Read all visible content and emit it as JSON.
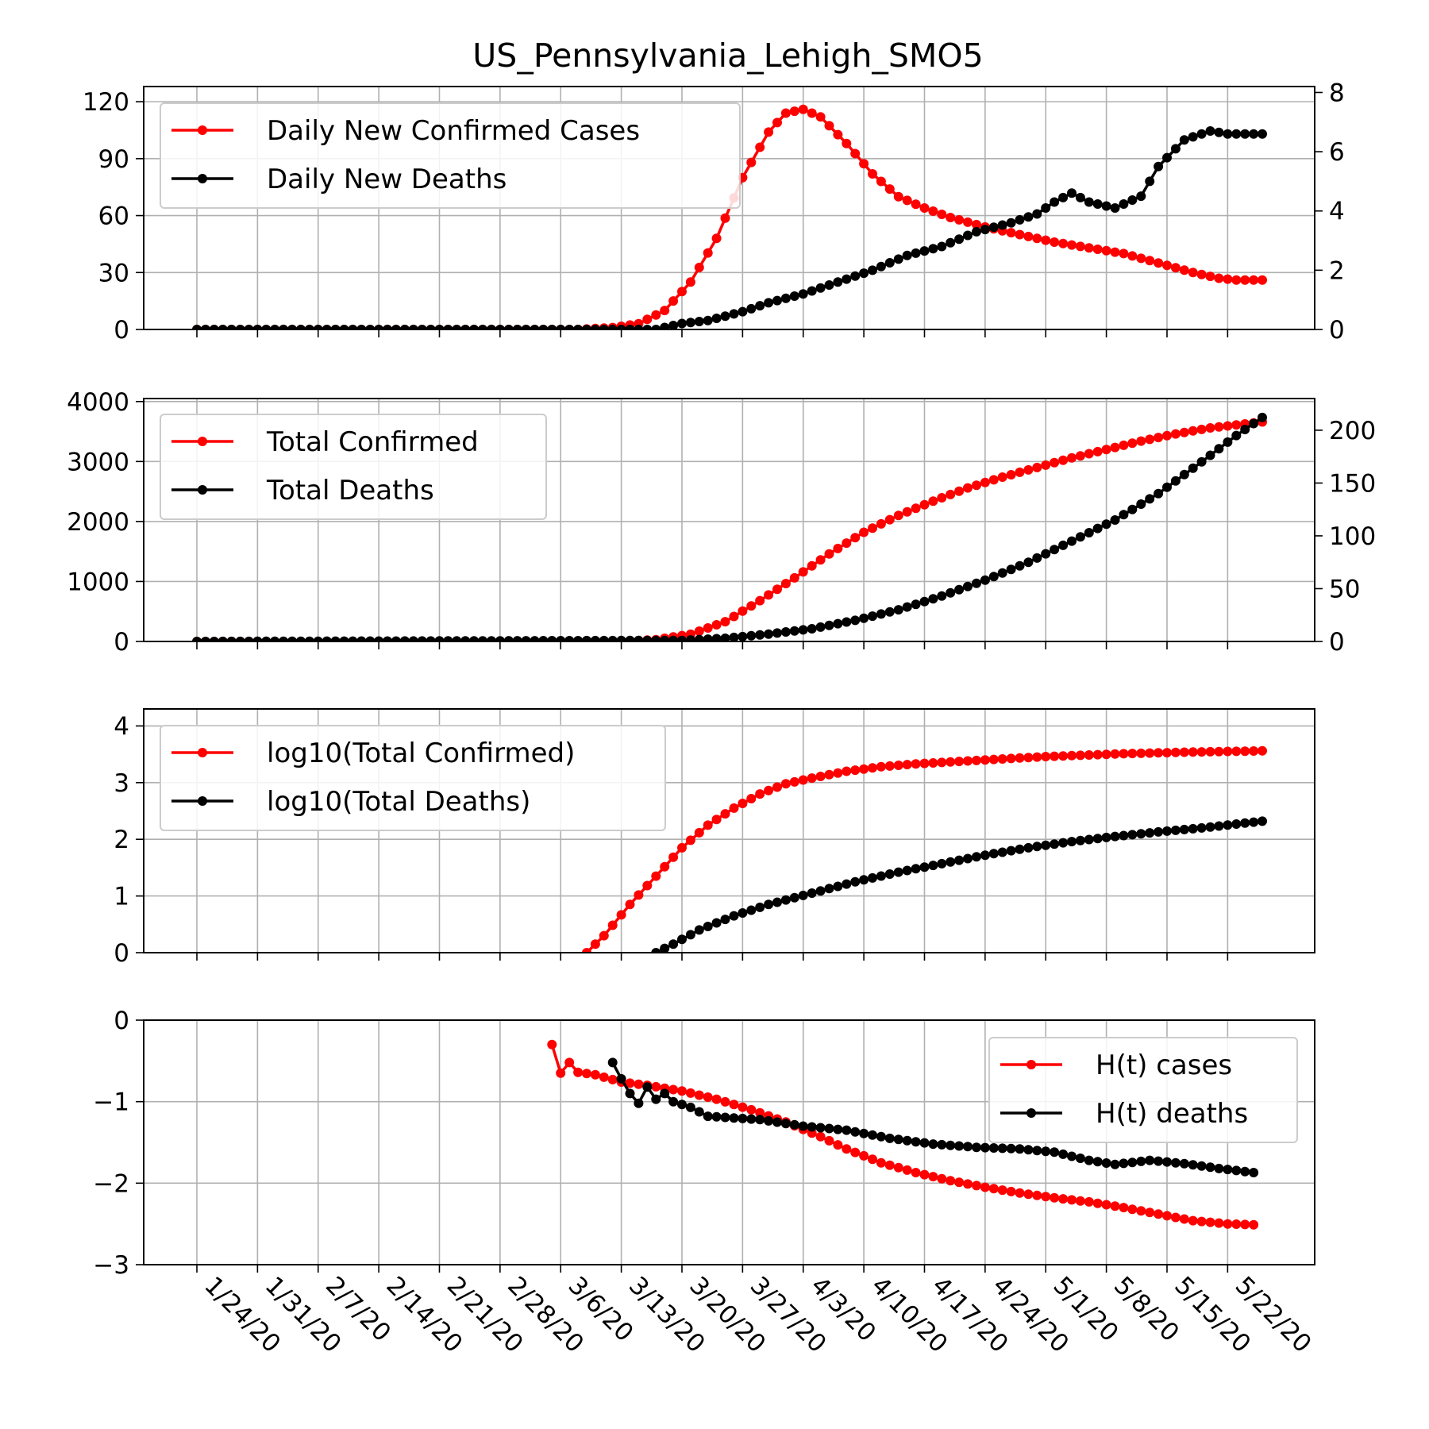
{
  "title": "US_Pennsylvania_Lehigh_SMO5",
  "colors": {
    "cases": "#ff0000",
    "deaths": "#000000",
    "grid": "#b0b0b0"
  },
  "date_ticks": [
    "1/24/20",
    "1/31/20",
    "2/7/20",
    "2/14/20",
    "2/21/20",
    "2/28/20",
    "3/6/20",
    "3/13/20",
    "3/20/20",
    "3/27/20",
    "4/3/20",
    "4/10/20",
    "4/17/20",
    "4/24/20",
    "5/1/20",
    "5/8/20",
    "5/15/20",
    "5/22/20"
  ],
  "chart_data": [
    {
      "type": "line",
      "x_range_dates": [
        "1/24/20",
        "5/26/20"
      ],
      "legend_position": "upper-left",
      "grid": true,
      "ylim_left": [
        0,
        128
      ],
      "yticks_left": [
        "0",
        "30",
        "60",
        "90",
        "120"
      ],
      "ylim_right": [
        0,
        8.2
      ],
      "yticks_right": [
        "0",
        "2",
        "4",
        "6",
        "8"
      ],
      "series": [
        {
          "name": "Daily New Confirmed Cases",
          "axis": "left",
          "color": "#ff0000",
          "points": [
            [
              "1/24/20",
              0
            ],
            [
              "3/8/20",
              0
            ],
            [
              "3/12/20",
              1
            ],
            [
              "3/15/20",
              3
            ],
            [
              "3/18/20",
              10
            ],
            [
              "3/21/20",
              25
            ],
            [
              "3/24/20",
              48
            ],
            [
              "3/27/20",
              80
            ],
            [
              "3/30/20",
              104
            ],
            [
              "4/1/20",
              114
            ],
            [
              "4/3/20",
              116
            ],
            [
              "4/5/20",
              112
            ],
            [
              "4/8/20",
              98
            ],
            [
              "4/11/20",
              82
            ],
            [
              "4/14/20",
              70
            ],
            [
              "4/17/20",
              64
            ],
            [
              "4/20/20",
              59
            ],
            [
              "4/24/20",
              54
            ],
            [
              "4/28/20",
              50
            ],
            [
              "5/2/20",
              46
            ],
            [
              "5/6/20",
              43
            ],
            [
              "5/10/20",
              40
            ],
            [
              "5/14/20",
              35
            ],
            [
              "5/18/20",
              30
            ],
            [
              "5/21/20",
              27
            ],
            [
              "5/23/20",
              26
            ],
            [
              "5/26/20",
              26
            ]
          ]
        },
        {
          "name": "Daily New Deaths",
          "axis": "right",
          "color": "#000000",
          "points": [
            [
              "1/24/20",
              0
            ],
            [
              "3/17/20",
              0
            ],
            [
              "3/20/20",
              0.2
            ],
            [
              "3/23/20",
              0.3
            ],
            [
              "3/27/20",
              0.6
            ],
            [
              "3/30/20",
              0.9
            ],
            [
              "4/3/20",
              1.2
            ],
            [
              "4/7/20",
              1.6
            ],
            [
              "4/11/20",
              2.0
            ],
            [
              "4/15/20",
              2.5
            ],
            [
              "4/19/20",
              2.8
            ],
            [
              "4/23/20",
              3.3
            ],
            [
              "4/27/20",
              3.6
            ],
            [
              "4/30/20",
              3.9
            ],
            [
              "5/2/20",
              4.3
            ],
            [
              "5/4/20",
              4.6
            ],
            [
              "5/6/20",
              4.3
            ],
            [
              "5/9/20",
              4.1
            ],
            [
              "5/12/20",
              4.5
            ],
            [
              "5/14/20",
              5.5
            ],
            [
              "5/17/20",
              6.4
            ],
            [
              "5/20/20",
              6.7
            ],
            [
              "5/22/20",
              6.6
            ],
            [
              "5/26/20",
              6.6
            ]
          ]
        }
      ]
    },
    {
      "type": "line",
      "legend_position": "upper-left",
      "grid": true,
      "ylim_left": [
        0,
        4050
      ],
      "yticks_left": [
        "0",
        "1000",
        "2000",
        "3000",
        "4000"
      ],
      "ylim_right": [
        0,
        230
      ],
      "yticks_right": [
        "0",
        "50",
        "100",
        "150",
        "200"
      ],
      "series": [
        {
          "name": "Total Confirmed",
          "axis": "left",
          "color": "#ff0000",
          "points": [
            [
              "1/24/20",
              0
            ],
            [
              "3/13/20",
              0
            ],
            [
              "3/17/20",
              30
            ],
            [
              "3/21/20",
              120
            ],
            [
              "3/25/20",
              330
            ],
            [
              "3/29/20",
              680
            ],
            [
              "4/2/20",
              1060
            ],
            [
              "4/6/20",
              1460
            ],
            [
              "4/10/20",
              1820
            ],
            [
              "4/14/20",
              2100
            ],
            [
              "4/18/20",
              2340
            ],
            [
              "4/22/20",
              2560
            ],
            [
              "4/26/20",
              2740
            ],
            [
              "4/30/20",
              2900
            ],
            [
              "5/4/20",
              3060
            ],
            [
              "5/8/20",
              3200
            ],
            [
              "5/12/20",
              3340
            ],
            [
              "5/16/20",
              3460
            ],
            [
              "5/20/20",
              3560
            ],
            [
              "5/26/20",
              3660
            ]
          ]
        },
        {
          "name": "Total Deaths",
          "axis": "right",
          "color": "#000000",
          "points": [
            [
              "1/24/20",
              0
            ],
            [
              "3/20/20",
              1
            ],
            [
              "3/25/20",
              3
            ],
            [
              "3/30/20",
              7
            ],
            [
              "4/4/20",
              12
            ],
            [
              "4/9/20",
              20
            ],
            [
              "4/14/20",
              30
            ],
            [
              "4/19/20",
              43
            ],
            [
              "4/24/20",
              58
            ],
            [
              "4/29/20",
              75
            ],
            [
              "5/4/20",
              95
            ],
            [
              "5/9/20",
              115
            ],
            [
              "5/14/20",
              140
            ],
            [
              "5/19/20",
              170
            ],
            [
              "5/23/20",
              195
            ],
            [
              "5/26/20",
              212
            ]
          ]
        }
      ]
    },
    {
      "type": "line",
      "legend_position": "upper-left",
      "grid": true,
      "ylim_left": [
        0,
        4.3
      ],
      "yticks_left": [
        "0",
        "1",
        "2",
        "3",
        "4"
      ],
      "series": [
        {
          "name": "log10(Total Confirmed)",
          "axis": "left",
          "color": "#ff0000",
          "points": [
            [
              "3/9/20",
              0
            ],
            [
              "3/11/20",
              0.3
            ],
            [
              "3/14/20",
              0.85
            ],
            [
              "3/17/20",
              1.35
            ],
            [
              "3/20/20",
              1.85
            ],
            [
              "3/23/20",
              2.25
            ],
            [
              "3/26/20",
              2.55
            ],
            [
              "3/29/20",
              2.8
            ],
            [
              "4/1/20",
              2.98
            ],
            [
              "4/4/20",
              3.08
            ],
            [
              "4/8/20",
              3.2
            ],
            [
              "4/12/20",
              3.28
            ],
            [
              "4/16/20",
              3.33
            ],
            [
              "4/24/20",
              3.4
            ],
            [
              "5/1/20",
              3.46
            ],
            [
              "5/10/20",
              3.51
            ],
            [
              "5/18/20",
              3.54
            ],
            [
              "5/26/20",
              3.56
            ]
          ]
        },
        {
          "name": "log10(Total Deaths)",
          "axis": "left",
          "color": "#000000",
          "points": [
            [
              "3/17/20",
              0
            ],
            [
              "3/19/20",
              0.15
            ],
            [
              "3/22/20",
              0.4
            ],
            [
              "3/26/20",
              0.65
            ],
            [
              "3/30/20",
              0.85
            ],
            [
              "4/4/20",
              1.05
            ],
            [
              "4/9/20",
              1.25
            ],
            [
              "4/14/20",
              1.42
            ],
            [
              "4/19/20",
              1.57
            ],
            [
              "4/24/20",
              1.72
            ],
            [
              "4/29/20",
              1.85
            ],
            [
              "5/4/20",
              1.96
            ],
            [
              "5/9/20",
              2.05
            ],
            [
              "5/14/20",
              2.13
            ],
            [
              "5/19/20",
              2.2
            ],
            [
              "5/26/20",
              2.32
            ]
          ]
        }
      ]
    },
    {
      "type": "line",
      "legend_position": "upper-right",
      "grid": true,
      "ylim_left": [
        -3,
        0
      ],
      "yticks_left": [
        "0",
        "−1",
        "−2",
        "−3"
      ],
      "series": [
        {
          "name": "H(t) cases",
          "axis": "left",
          "color": "#ff0000",
          "points": [
            [
              "3/5/20",
              -0.3
            ],
            [
              "3/6/20",
              -0.65
            ],
            [
              "3/7/20",
              -0.52
            ],
            [
              "3/8/20",
              -0.64
            ],
            [
              "3/10/20",
              -0.67
            ],
            [
              "3/13/20",
              -0.76
            ],
            [
              "3/16/20",
              -0.8
            ],
            [
              "3/20/20",
              -0.87
            ],
            [
              "3/24/20",
              -0.97
            ],
            [
              "3/28/20",
              -1.1
            ],
            [
              "4/1/20",
              -1.25
            ],
            [
              "4/5/20",
              -1.43
            ],
            [
              "4/8/20",
              -1.58
            ],
            [
              "4/12/20",
              -1.75
            ],
            [
              "4/16/20",
              -1.87
            ],
            [
              "4/20/20",
              -1.97
            ],
            [
              "4/24/20",
              -2.05
            ],
            [
              "4/28/20",
              -2.12
            ],
            [
              "5/2/20",
              -2.18
            ],
            [
              "5/6/20",
              -2.23
            ],
            [
              "5/10/20",
              -2.3
            ],
            [
              "5/14/20",
              -2.38
            ],
            [
              "5/18/20",
              -2.46
            ],
            [
              "5/22/20",
              -2.5
            ],
            [
              "5/25/20",
              -2.51
            ]
          ]
        },
        {
          "name": "H(t) deaths",
          "axis": "left",
          "color": "#000000",
          "points": [
            [
              "3/12/20",
              -0.52
            ],
            [
              "3/13/20",
              -0.72
            ],
            [
              "3/14/20",
              -0.9
            ],
            [
              "3/15/20",
              -1.02
            ],
            [
              "3/16/20",
              -0.82
            ],
            [
              "3/17/20",
              -0.97
            ],
            [
              "3/18/20",
              -0.9
            ],
            [
              "3/19/20",
              -1.0
            ],
            [
              "3/21/20",
              -1.07
            ],
            [
              "3/23/20",
              -1.18
            ],
            [
              "3/26/20",
              -1.2
            ],
            [
              "3/29/20",
              -1.22
            ],
            [
              "4/3/20",
              -1.3
            ],
            [
              "4/8/20",
              -1.35
            ],
            [
              "4/13/20",
              -1.45
            ],
            [
              "4/18/20",
              -1.52
            ],
            [
              "4/23/20",
              -1.56
            ],
            [
              "4/28/20",
              -1.58
            ],
            [
              "5/2/20",
              -1.62
            ],
            [
              "5/6/20",
              -1.72
            ],
            [
              "5/9/20",
              -1.77
            ],
            [
              "5/13/20",
              -1.72
            ],
            [
              "5/17/20",
              -1.76
            ],
            [
              "5/21/20",
              -1.82
            ],
            [
              "5/25/20",
              -1.87
            ]
          ]
        }
      ]
    }
  ]
}
